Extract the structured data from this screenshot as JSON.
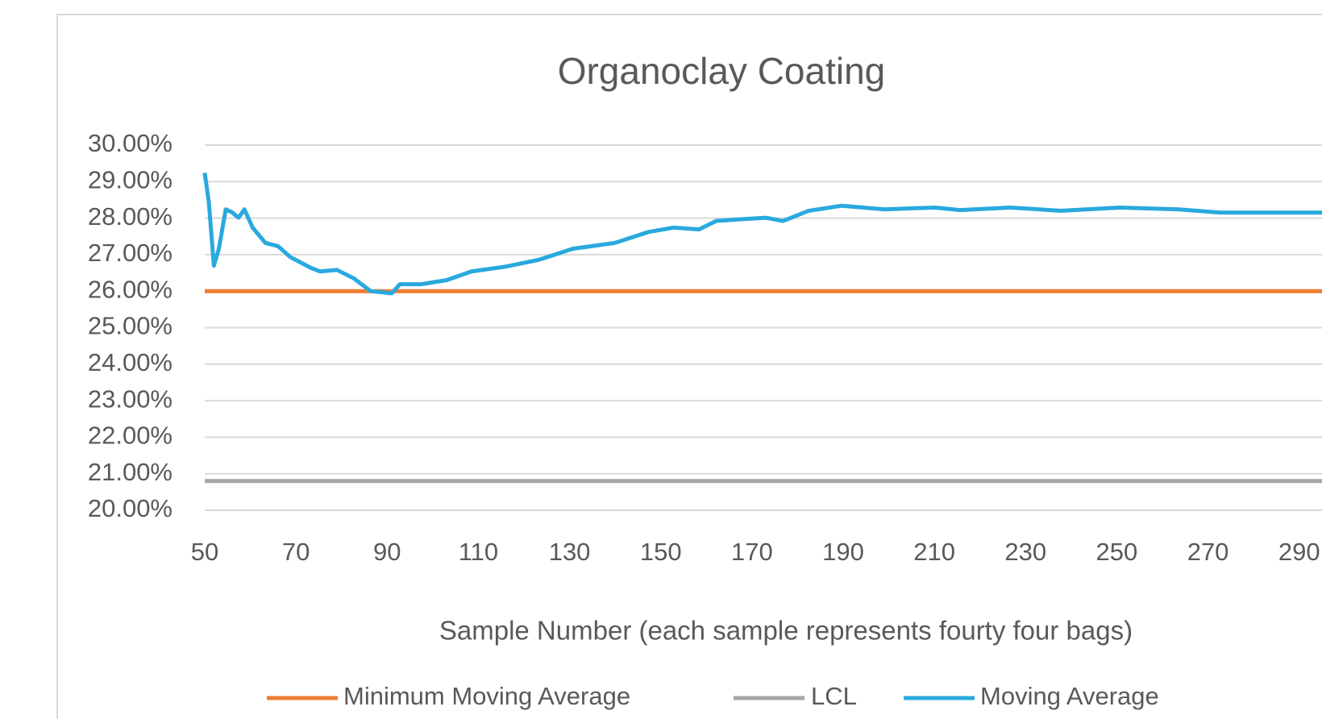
{
  "chart_data": {
    "type": "line",
    "title": "Organoclay Coating",
    "x_label": "Sample Number (each sample represents fourty four bags)",
    "xlim": [
      50,
      295
    ],
    "xticks": [
      50,
      70,
      90,
      110,
      130,
      150,
      170,
      190,
      210,
      230,
      250,
      270,
      290
    ],
    "ylim": [
      20,
      30
    ],
    "yticks": [
      {
        "value": 20,
        "label": "20.00%"
      },
      {
        "value": 21,
        "label": "21.00%"
      },
      {
        "value": 22,
        "label": "22.00%"
      },
      {
        "value": 23,
        "label": "23.00%"
      },
      {
        "value": 24,
        "label": "24.00%"
      },
      {
        "value": 25,
        "label": "25.00%"
      },
      {
        "value": 26,
        "label": "26.00%"
      },
      {
        "value": 27,
        "label": "27.00%"
      },
      {
        "value": 28,
        "label": "28.00%"
      },
      {
        "value": 29,
        "label": "29.00%"
      },
      {
        "value": 30,
        "label": "30.00%"
      }
    ],
    "grid": true,
    "legend": "bottom",
    "series": [
      {
        "name": "Minimum Moving Average",
        "color": "#ed7d31",
        "x": [
          50,
          295
        ],
        "values": [
          26,
          26
        ]
      },
      {
        "name": "LCL",
        "color": "#a5a5a5",
        "x": [
          50,
          295
        ],
        "values": [
          20.8,
          20.8
        ]
      },
      {
        "name": "Moving Average",
        "color": "#29a9de",
        "x": [
          50,
          50.9,
          52,
          53.1,
          54.6,
          56.1,
          57.4,
          58.7,
          60.5,
          63.3,
          66.1,
          68.8,
          73.4,
          75.3,
          79,
          82.7,
          86.4,
          91,
          92.8,
          97.4,
          103,
          108.5,
          115.9,
          123.3,
          130.7,
          139.9,
          147.3,
          152.8,
          158.4,
          162.1,
          167.6,
          173.1,
          176.8,
          182.4,
          189.7,
          199,
          210.1,
          215.6,
          226.7,
          237.7,
          250.7,
          263.6,
          272.8,
          295
        ],
        "values": [
          29.24,
          28.43,
          26.7,
          27.16,
          28.24,
          28.15,
          28.01,
          28.24,
          27.74,
          27.32,
          27.23,
          26.93,
          26.63,
          26.54,
          26.58,
          26.35,
          26.0,
          25.94,
          26.19,
          26.19,
          26.3,
          26.54,
          26.67,
          26.86,
          27.16,
          27.32,
          27.62,
          27.74,
          27.69,
          27.92,
          27.97,
          28.01,
          27.92,
          28.2,
          28.34,
          28.24,
          28.29,
          28.22,
          28.29,
          28.2,
          28.29,
          28.24,
          28.15,
          28.15
        ]
      }
    ]
  }
}
